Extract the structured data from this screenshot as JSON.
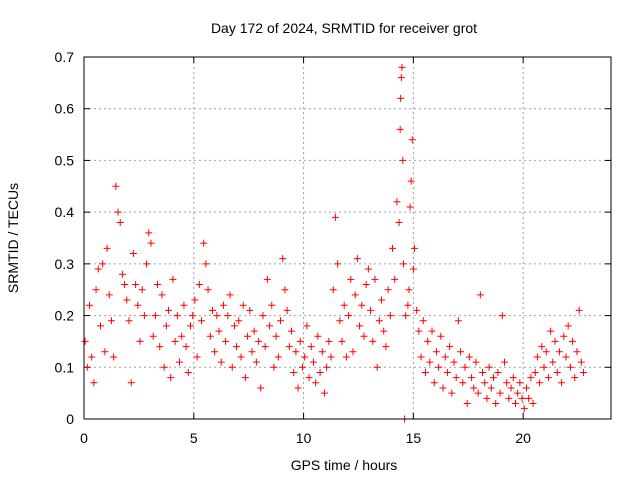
{
  "chart_data": {
    "type": "scatter",
    "title": "Day 172 of 2024, SRMTID for receiver grot",
    "xlabel": "GPS time / hours",
    "ylabel": "SRMTID / TECUs",
    "xlim": [
      0,
      24
    ],
    "ylim": [
      0,
      0.7
    ],
    "x_ticks": [
      0,
      5,
      10,
      15,
      20
    ],
    "x_tick_labels": [
      "0",
      "5",
      "10",
      "15",
      "20"
    ],
    "y_ticks": [
      0,
      0.1,
      0.2,
      0.3,
      0.4,
      0.5,
      0.6,
      0.7
    ],
    "y_tick_labels": [
      "0",
      "0.1",
      "0.2",
      "0.3",
      "0.4",
      "0.5",
      "0.6",
      "0.7"
    ],
    "grid": true,
    "marker": "+",
    "color": "#ff0000",
    "series": [
      {
        "name": "SRMTID",
        "points": [
          [
            0.05,
            0.15
          ],
          [
            0.15,
            0.1
          ],
          [
            0.25,
            0.22
          ],
          [
            0.35,
            0.12
          ],
          [
            0.45,
            0.07
          ],
          [
            0.55,
            0.25
          ],
          [
            0.65,
            0.29
          ],
          [
            0.75,
            0.18
          ],
          [
            0.85,
            0.3
          ],
          [
            0.95,
            0.13
          ],
          [
            1.05,
            0.33
          ],
          [
            1.15,
            0.24
          ],
          [
            1.25,
            0.19
          ],
          [
            1.35,
            0.12
          ],
          [
            1.45,
            0.45
          ],
          [
            1.55,
            0.4
          ],
          [
            1.65,
            0.38
          ],
          [
            1.75,
            0.28
          ],
          [
            1.85,
            0.26
          ],
          [
            1.95,
            0.23
          ],
          [
            2.05,
            0.19
          ],
          [
            2.15,
            0.07
          ],
          [
            2.25,
            0.32
          ],
          [
            2.35,
            0.26
          ],
          [
            2.45,
            0.22
          ],
          [
            2.55,
            0.15
          ],
          [
            2.65,
            0.25
          ],
          [
            2.75,
            0.2
          ],
          [
            2.85,
            0.3
          ],
          [
            2.95,
            0.36
          ],
          [
            3.05,
            0.34
          ],
          [
            3.15,
            0.16
          ],
          [
            3.25,
            0.2
          ],
          [
            3.35,
            0.26
          ],
          [
            3.45,
            0.14
          ],
          [
            3.55,
            0.24
          ],
          [
            3.65,
            0.1
          ],
          [
            3.75,
            0.18
          ],
          [
            3.85,
            0.21
          ],
          [
            3.95,
            0.08
          ],
          [
            4.05,
            0.27
          ],
          [
            4.15,
            0.15
          ],
          [
            4.25,
            0.2
          ],
          [
            4.35,
            0.11
          ],
          [
            4.45,
            0.16
          ],
          [
            4.55,
            0.22
          ],
          [
            4.65,
            0.14
          ],
          [
            4.75,
            0.09
          ],
          [
            4.85,
            0.18
          ],
          [
            4.95,
            0.2
          ],
          [
            5.05,
            0.23
          ],
          [
            5.15,
            0.12
          ],
          [
            5.25,
            0.26
          ],
          [
            5.35,
            0.19
          ],
          [
            5.45,
            0.34
          ],
          [
            5.55,
            0.3
          ],
          [
            5.65,
            0.25
          ],
          [
            5.75,
            0.16
          ],
          [
            5.85,
            0.21
          ],
          [
            5.95,
            0.13
          ],
          [
            6.05,
            0.2
          ],
          [
            6.15,
            0.17
          ],
          [
            6.25,
            0.11
          ],
          [
            6.35,
            0.22
          ],
          [
            6.45,
            0.15
          ],
          [
            6.55,
            0.2
          ],
          [
            6.65,
            0.24
          ],
          [
            6.75,
            0.1
          ],
          [
            6.85,
            0.18
          ],
          [
            6.95,
            0.14
          ],
          [
            7.05,
            0.19
          ],
          [
            7.15,
            0.12
          ],
          [
            7.25,
            0.22
          ],
          [
            7.35,
            0.08
          ],
          [
            7.45,
            0.16
          ],
          [
            7.55,
            0.21
          ],
          [
            7.65,
            0.13
          ],
          [
            7.75,
            0.17
          ],
          [
            7.85,
            0.11
          ],
          [
            7.95,
            0.15
          ],
          [
            8.05,
            0.06
          ],
          [
            8.15,
            0.2
          ],
          [
            8.25,
            0.14
          ],
          [
            8.35,
            0.27
          ],
          [
            8.45,
            0.18
          ],
          [
            8.55,
            0.22
          ],
          [
            8.65,
            0.1
          ],
          [
            8.75,
            0.16
          ],
          [
            8.85,
            0.12
          ],
          [
            8.95,
            0.19
          ],
          [
            9.05,
            0.31
          ],
          [
            9.15,
            0.25
          ],
          [
            9.25,
            0.21
          ],
          [
            9.35,
            0.14
          ],
          [
            9.45,
            0.17
          ],
          [
            9.55,
            0.09
          ],
          [
            9.65,
            0.13
          ],
          [
            9.75,
            0.06
          ],
          [
            9.85,
            0.15
          ],
          [
            9.95,
            0.1
          ],
          [
            10.05,
            0.12
          ],
          [
            10.15,
            0.18
          ],
          [
            10.25,
            0.08
          ],
          [
            10.35,
            0.14
          ],
          [
            10.45,
            0.11
          ],
          [
            10.55,
            0.07
          ],
          [
            10.65,
            0.16
          ],
          [
            10.75,
            0.09
          ],
          [
            10.85,
            0.13
          ],
          [
            10.95,
            0.05
          ],
          [
            11.05,
            0.1
          ],
          [
            11.15,
            0.15
          ],
          [
            11.25,
            0.12
          ],
          [
            11.35,
            0.25
          ],
          [
            11.45,
            0.39
          ],
          [
            11.55,
            0.3
          ],
          [
            11.65,
            0.19
          ],
          [
            11.75,
            0.15
          ],
          [
            11.85,
            0.22
          ],
          [
            11.95,
            0.12
          ],
          [
            12.05,
            0.2
          ],
          [
            12.15,
            0.27
          ],
          [
            12.25,
            0.13
          ],
          [
            12.35,
            0.24
          ],
          [
            12.45,
            0.31
          ],
          [
            12.55,
            0.18
          ],
          [
            12.65,
            0.22
          ],
          [
            12.75,
            0.16
          ],
          [
            12.85,
            0.26
          ],
          [
            12.95,
            0.29
          ],
          [
            13.05,
            0.21
          ],
          [
            13.15,
            0.15
          ],
          [
            13.25,
            0.27
          ],
          [
            13.35,
            0.1
          ],
          [
            13.45,
            0.19
          ],
          [
            13.55,
            0.23
          ],
          [
            13.65,
            0.17
          ],
          [
            13.75,
            0.14
          ],
          [
            13.85,
            0.25
          ],
          [
            13.95,
            0.2
          ],
          [
            14.05,
            0.33
          ],
          [
            14.15,
            0.27
          ],
          [
            14.25,
            0.42
          ],
          [
            14.35,
            0.38
          ],
          [
            14.4,
            0.56
          ],
          [
            14.42,
            0.62
          ],
          [
            14.45,
            0.66
          ],
          [
            14.48,
            0.68
          ],
          [
            14.52,
            0.5
          ],
          [
            14.55,
            0.3
          ],
          [
            14.6,
            0.0
          ],
          [
            14.65,
            0.2
          ],
          [
            14.75,
            0.22
          ],
          [
            14.8,
            0.25
          ],
          [
            14.85,
            0.41
          ],
          [
            14.9,
            0.46
          ],
          [
            14.95,
            0.54
          ],
          [
            15.0,
            0.29
          ],
          [
            15.05,
            0.33
          ],
          [
            15.15,
            0.21
          ],
          [
            15.25,
            0.17
          ],
          [
            15.35,
            0.12
          ],
          [
            15.45,
            0.19
          ],
          [
            15.55,
            0.09
          ],
          [
            15.65,
            0.15
          ],
          [
            15.75,
            0.11
          ],
          [
            15.85,
            0.17
          ],
          [
            15.95,
            0.07
          ],
          [
            16.05,
            0.13
          ],
          [
            16.15,
            0.1
          ],
          [
            16.25,
            0.16
          ],
          [
            16.35,
            0.06
          ],
          [
            16.45,
            0.12
          ],
          [
            16.55,
            0.09
          ],
          [
            16.65,
            0.14
          ],
          [
            16.75,
            0.05
          ],
          [
            16.85,
            0.11
          ],
          [
            16.95,
            0.08
          ],
          [
            17.05,
            0.19
          ],
          [
            17.15,
            0.13
          ],
          [
            17.25,
            0.07
          ],
          [
            17.35,
            0.1
          ],
          [
            17.45,
            0.03
          ],
          [
            17.55,
            0.12
          ],
          [
            17.65,
            0.08
          ],
          [
            17.75,
            0.06
          ],
          [
            17.85,
            0.11
          ],
          [
            17.95,
            0.05
          ],
          [
            18.05,
            0.24
          ],
          [
            18.15,
            0.09
          ],
          [
            18.25,
            0.07
          ],
          [
            18.35,
            0.04
          ],
          [
            18.45,
            0.1
          ],
          [
            18.55,
            0.06
          ],
          [
            18.65,
            0.08
          ],
          [
            18.75,
            0.03
          ],
          [
            18.85,
            0.09
          ],
          [
            18.95,
            0.05
          ],
          [
            19.05,
            0.2
          ],
          [
            19.15,
            0.11
          ],
          [
            19.25,
            0.07
          ],
          [
            19.35,
            0.04
          ],
          [
            19.45,
            0.06
          ],
          [
            19.55,
            0.08
          ],
          [
            19.65,
            0.03
          ],
          [
            19.75,
            0.05
          ],
          [
            19.85,
            0.07
          ],
          [
            19.95,
            0.04
          ],
          [
            20.05,
            0.02
          ],
          [
            20.15,
            0.06
          ],
          [
            20.25,
            0.04
          ],
          [
            20.35,
            0.08
          ],
          [
            20.45,
            0.03
          ],
          [
            20.55,
            0.09
          ],
          [
            20.65,
            0.12
          ],
          [
            20.75,
            0.07
          ],
          [
            20.85,
            0.14
          ],
          [
            20.95,
            0.1
          ],
          [
            21.05,
            0.13
          ],
          [
            21.15,
            0.08
          ],
          [
            21.25,
            0.17
          ],
          [
            21.35,
            0.11
          ],
          [
            21.45,
            0.15
          ],
          [
            21.55,
            0.09
          ],
          [
            21.65,
            0.13
          ],
          [
            21.75,
            0.07
          ],
          [
            21.85,
            0.16
          ],
          [
            21.95,
            0.12
          ],
          [
            22.05,
            0.18
          ],
          [
            22.15,
            0.1
          ],
          [
            22.25,
            0.15
          ],
          [
            22.35,
            0.08
          ],
          [
            22.45,
            0.13
          ],
          [
            22.55,
            0.21
          ],
          [
            22.65,
            0.11
          ],
          [
            22.75,
            0.09
          ]
        ]
      }
    ]
  }
}
